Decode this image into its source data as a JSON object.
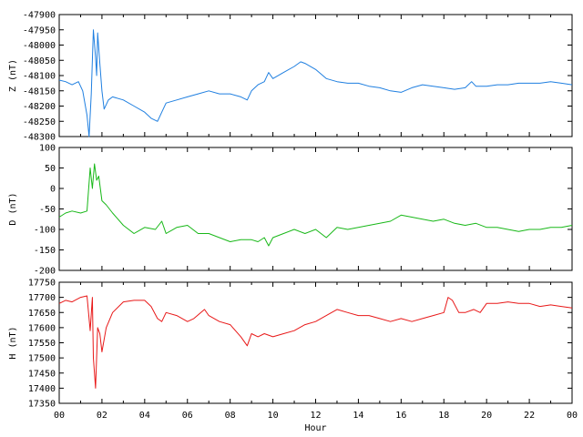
{
  "chart_data": [
    {
      "type": "line",
      "ylabel": "Z (nT)",
      "ylim": [
        -48300,
        -47900
      ],
      "yticks": [
        -47900,
        -47950,
        -48000,
        -48050,
        -48100,
        -48150,
        -48200,
        -48250,
        -48300
      ],
      "xlim": [
        0,
        24
      ],
      "series": [
        {
          "color": "#1f7fe0",
          "x": [
            0,
            0.3,
            0.6,
            0.9,
            1.1,
            1.3,
            1.4,
            1.5,
            1.6,
            1.7,
            1.75,
            1.8,
            1.9,
            2.0,
            2.1,
            2.3,
            2.5,
            3.0,
            3.5,
            4.0,
            4.3,
            4.6,
            4.8,
            5.0,
            5.5,
            6.0,
            6.5,
            7.0,
            7.5,
            8.0,
            8.5,
            8.8,
            9.0,
            9.3,
            9.6,
            9.8,
            10.0,
            10.5,
            11.0,
            11.3,
            11.5,
            12.0,
            12.5,
            13.0,
            13.5,
            14.0,
            14.5,
            15.0,
            15.5,
            16.0,
            16.5,
            17.0,
            17.5,
            18.0,
            18.5,
            19.0,
            19.3,
            19.5,
            20.0,
            20.5,
            21.0,
            21.5,
            22.0,
            22.5,
            23.0,
            23.5,
            24.0
          ],
          "y": [
            -48115,
            -48120,
            -48130,
            -48120,
            -48150,
            -48230,
            -48300,
            -48160,
            -47950,
            -48040,
            -48100,
            -47960,
            -48060,
            -48150,
            -48210,
            -48180,
            -48170,
            -48180,
            -48200,
            -48220,
            -48240,
            -48250,
            -48220,
            -48190,
            -48180,
            -48170,
            -48160,
            -48150,
            -48160,
            -48160,
            -48170,
            -48180,
            -48150,
            -48130,
            -48120,
            -48090,
            -48110,
            -48090,
            -48070,
            -48055,
            -48060,
            -48080,
            -48110,
            -48120,
            -48125,
            -48125,
            -48135,
            -48140,
            -48150,
            -48155,
            -48140,
            -48130,
            -48135,
            -48140,
            -48145,
            -48140,
            -48120,
            -48135,
            -48135,
            -48130,
            -48130,
            -48125,
            -48125,
            -48125,
            -48120,
            -48125,
            -48130
          ]
        }
      ]
    },
    {
      "type": "line",
      "ylabel": "D (nT)",
      "ylim": [
        -200,
        100
      ],
      "yticks": [
        100,
        50,
        0,
        -50,
        -100,
        -150,
        -200
      ],
      "xlim": [
        0,
        24
      ],
      "series": [
        {
          "color": "#18b818",
          "x": [
            0,
            0.3,
            0.6,
            1.0,
            1.3,
            1.45,
            1.55,
            1.65,
            1.75,
            1.85,
            2.0,
            2.2,
            2.5,
            3.0,
            3.5,
            4.0,
            4.5,
            4.8,
            5.0,
            5.5,
            6.0,
            6.5,
            7.0,
            7.5,
            8.0,
            8.5,
            9.0,
            9.3,
            9.6,
            9.8,
            10.0,
            10.5,
            11.0,
            11.5,
            12.0,
            12.5,
            13.0,
            13.5,
            14.0,
            14.5,
            15.0,
            15.5,
            16.0,
            16.5,
            17.0,
            17.5,
            18.0,
            18.5,
            19.0,
            19.5,
            20.0,
            20.5,
            21.0,
            21.5,
            22.0,
            22.5,
            23.0,
            23.5,
            24.0
          ],
          "y": [
            -70,
            -60,
            -55,
            -60,
            -55,
            50,
            0,
            60,
            20,
            30,
            -30,
            -40,
            -60,
            -90,
            -110,
            -95,
            -100,
            -80,
            -110,
            -95,
            -90,
            -110,
            -110,
            -120,
            -130,
            -125,
            -125,
            -130,
            -120,
            -140,
            -120,
            -110,
            -100,
            -110,
            -100,
            -120,
            -95,
            -100,
            -95,
            -90,
            -85,
            -80,
            -65,
            -70,
            -75,
            -80,
            -75,
            -85,
            -90,
            -85,
            -95,
            -95,
            -100,
            -105,
            -100,
            -100,
            -95,
            -95,
            -90
          ]
        }
      ]
    },
    {
      "type": "line",
      "ylabel": "H (nT)",
      "ylim": [
        17350,
        17750
      ],
      "yticks": [
        17750,
        17700,
        17650,
        17600,
        17550,
        17500,
        17450,
        17400,
        17350
      ],
      "xlim": [
        0,
        24
      ],
      "xticks": [
        "00",
        "02",
        "04",
        "06",
        "08",
        "10",
        "12",
        "14",
        "16",
        "18",
        "20",
        "22",
        "00"
      ],
      "xlabel": "Hour",
      "series": [
        {
          "color": "#e81818",
          "x": [
            0,
            0.3,
            0.6,
            1.0,
            1.3,
            1.45,
            1.55,
            1.6,
            1.7,
            1.8,
            1.9,
            2.0,
            2.2,
            2.5,
            3.0,
            3.5,
            4.0,
            4.3,
            4.6,
            4.8,
            5.0,
            5.5,
            6.0,
            6.3,
            6.8,
            7.0,
            7.5,
            8.0,
            8.5,
            8.8,
            9.0,
            9.3,
            9.6,
            10.0,
            10.5,
            11.0,
            11.5,
            12.0,
            12.5,
            13.0,
            13.5,
            14.0,
            14.5,
            15.0,
            15.5,
            16.0,
            16.5,
            17.0,
            17.5,
            18.0,
            18.2,
            18.4,
            18.7,
            19.0,
            19.4,
            19.7,
            20.0,
            20.5,
            21.0,
            21.5,
            22.0,
            22.5,
            23.0,
            23.5,
            24.0
          ],
          "y": [
            17680,
            17690,
            17685,
            17700,
            17705,
            17590,
            17700,
            17500,
            17400,
            17600,
            17580,
            17520,
            17600,
            17650,
            17685,
            17690,
            17690,
            17670,
            17630,
            17620,
            17650,
            17640,
            17620,
            17630,
            17660,
            17640,
            17620,
            17610,
            17570,
            17540,
            17580,
            17570,
            17580,
            17570,
            17580,
            17590,
            17610,
            17620,
            17640,
            17660,
            17650,
            17640,
            17640,
            17630,
            17620,
            17630,
            17620,
            17630,
            17640,
            17650,
            17700,
            17690,
            17650,
            17650,
            17660,
            17650,
            17680,
            17680,
            17685,
            17680,
            17680,
            17670,
            17675,
            17670,
            17665
          ]
        }
      ]
    }
  ]
}
